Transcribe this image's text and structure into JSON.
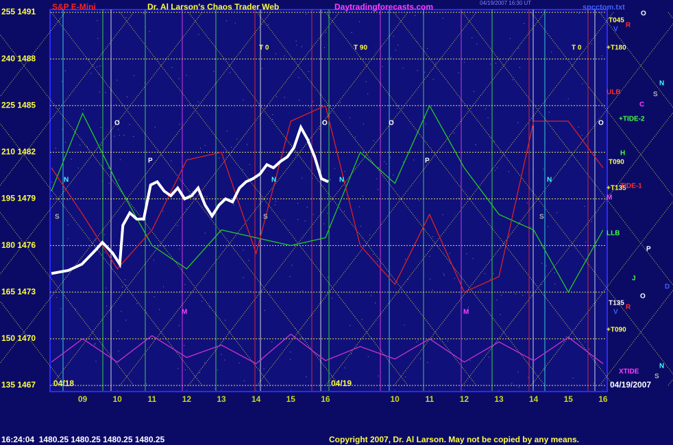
{
  "chart_data": {
    "type": "line",
    "title": "Dr. Al Larson's Chaos Trader Web",
    "instrument": "S&P E-Mini",
    "site": "Daytradingforecasts.com",
    "timestamp": "04/19/2007 16:30 UT",
    "file": "spcctom.txt",
    "date": "04/19/2007",
    "day_labels": [
      "04/18",
      "04/19"
    ],
    "footer": "16:24:04  1480.25 1480.25 1480.25 1480.25",
    "copyright": "Copyright 2007, Dr. Al Larson. May not be copied by any means.",
    "xlim": [
      0.1,
      16.1
    ],
    "ylim": [
      1467,
      1491
    ],
    "xticks": [
      {
        "value": 1,
        "label": "09"
      },
      {
        "value": 2,
        "label": "10"
      },
      {
        "value": 3,
        "label": "11"
      },
      {
        "value": 4,
        "label": "12"
      },
      {
        "value": 5,
        "label": "13"
      },
      {
        "value": 6,
        "label": "14"
      },
      {
        "value": 7,
        "label": "15"
      },
      {
        "value": 8,
        "label": "16"
      },
      {
        "value": 10,
        "label": "10"
      },
      {
        "value": 11,
        "label": "11"
      },
      {
        "value": 12,
        "label": "12"
      },
      {
        "value": 13,
        "label": "13"
      },
      {
        "value": 14,
        "label": "14"
      },
      {
        "value": 15,
        "label": "15"
      },
      {
        "value": 16,
        "label": "16"
      }
    ],
    "yticks": [
      {
        "value": 1491,
        "label": "255 1491"
      },
      {
        "value": 1488,
        "label": "240 1488"
      },
      {
        "value": 1485,
        "label": "225 1485"
      },
      {
        "value": 1482,
        "label": "210 1482"
      },
      {
        "value": 1479,
        "label": "195 1479"
      },
      {
        "value": 1476,
        "label": "180 1476"
      },
      {
        "value": 1473,
        "label": "165 1473"
      },
      {
        "value": 1470,
        "label": "150 1470"
      },
      {
        "value": 1467,
        "label": "135 1467"
      }
    ],
    "grid": true,
    "series": [
      {
        "color": "#ffffff",
        "x": [
          0.1,
          0.59,
          0.98,
          1.37,
          1.57,
          1.87,
          2.07,
          2.16,
          2.36,
          2.56,
          2.76,
          2.96,
          3.15,
          3.35,
          3.54,
          3.74,
          3.94,
          4.14,
          4.33,
          4.53,
          4.73,
          4.93,
          5.12,
          5.32,
          5.52,
          5.71,
          5.91,
          6.11,
          6.31,
          6.5,
          6.7,
          6.9,
          7.09,
          7.29,
          7.49,
          7.69,
          7.88,
          8.08
        ],
        "values": [
          1474.2,
          1474.4,
          1474.8,
          1475.7,
          1476.2,
          1475.5,
          1474.8,
          1477.3,
          1478.1,
          1477.7,
          1477.7,
          1479.9,
          1480.1,
          1479.5,
          1479.2,
          1479.7,
          1479.0,
          1479.2,
          1479.7,
          1478.6,
          1477.9,
          1478.6,
          1479.0,
          1478.8,
          1479.7,
          1480.1,
          1480.3,
          1480.6,
          1481.2,
          1481.0,
          1481.4,
          1481.7,
          1482.3,
          1483.6,
          1482.8,
          1481.7,
          1480.3,
          1480.1
        ]
      },
      {
        "color": "#22cc22",
        "x": [
          0.1,
          1,
          2,
          3,
          4,
          5,
          6,
          7,
          8,
          9,
          10,
          11,
          12,
          13,
          14,
          15,
          16
        ],
        "values": [
          1479.5,
          1484.5,
          1480,
          1476,
          1474.5,
          1477,
          1476.5,
          1476,
          1476.5,
          1482,
          1480,
          1485,
          1481,
          1478,
          1477,
          1473,
          1477
        ]
      },
      {
        "color": "#dd2222",
        "x": [
          0.1,
          1,
          2,
          3,
          4,
          5,
          6,
          7,
          8,
          9,
          10,
          11,
          12,
          13,
          14,
          15,
          16
        ],
        "values": [
          1481,
          1478,
          1474.5,
          1477,
          1481.5,
          1482,
          1475.5,
          1484,
          1485,
          1476,
          1473.5,
          1478,
          1473,
          1474,
          1484,
          1484,
          1481
        ]
      },
      {
        "color": "#cc33cc",
        "x": [
          0.1,
          1,
          2,
          3,
          4,
          5,
          6,
          7,
          8,
          9,
          10,
          11,
          12,
          13,
          14,
          15,
          16
        ],
        "values": [
          1468.5,
          1470,
          1468.5,
          1470.2,
          1468.8,
          1469.6,
          1468.4,
          1470.3,
          1468.6,
          1469.5,
          1468.7,
          1470,
          1468.5,
          1469.8,
          1468.6,
          1470.1,
          1468.4
        ]
      }
    ],
    "labels": [
      "T045",
      "R",
      "V",
      "+T180",
      "ULB",
      "+TIDE-2",
      "H",
      "T090",
      "+T135",
      "TIDE-1",
      "M",
      "LLB",
      "T135",
      "R",
      "V",
      "+T090",
      "XTIDE",
      "O",
      "N",
      "S",
      "C",
      "O",
      "P",
      "J",
      "D",
      "O",
      "N",
      "S",
      "T 0",
      "T 90",
      "T 0",
      "O",
      "O",
      "O",
      "P",
      "P",
      "N",
      "N",
      "N",
      "N",
      "S",
      "S",
      "S",
      "M",
      "M"
    ]
  }
}
